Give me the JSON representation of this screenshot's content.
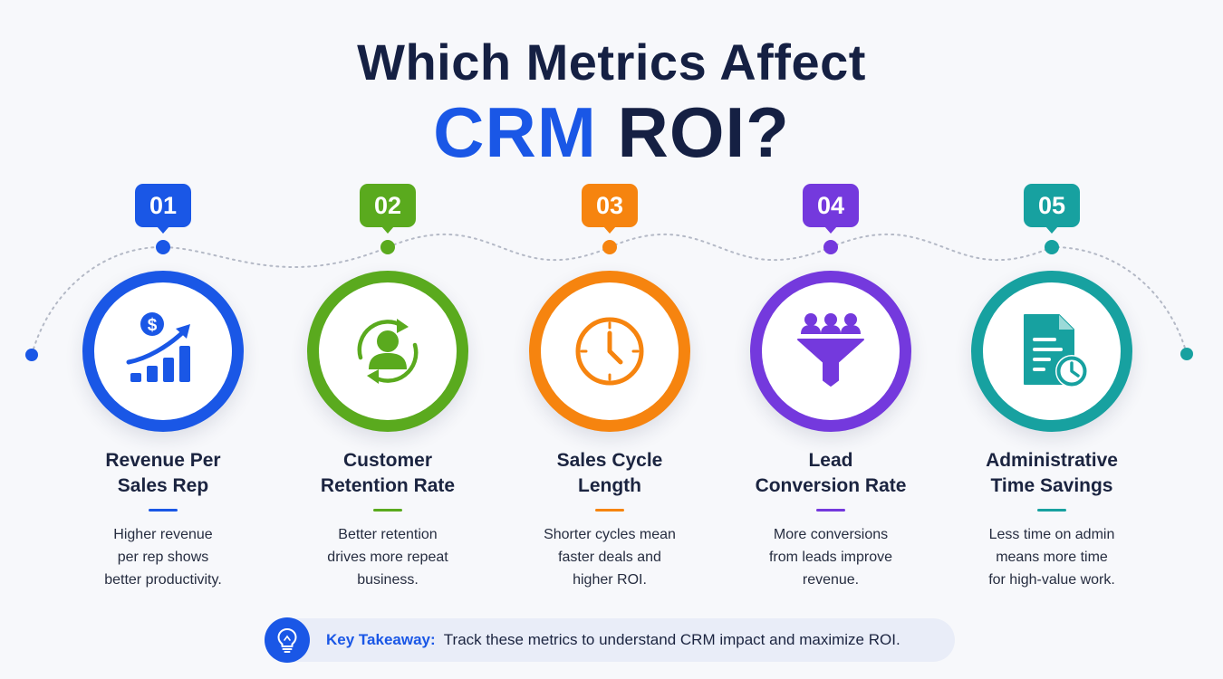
{
  "title": {
    "line1": "Which Metrics Affect",
    "line2_accent": "CRM",
    "line2_rest": "ROI?"
  },
  "metrics": [
    {
      "number": "01",
      "name_line1": "Revenue Per",
      "name_line2": "Sales Rep",
      "desc": [
        "Higher revenue",
        "per rep shows",
        "better productivity."
      ],
      "color": "#1a57e6",
      "icon": "revenue-chart-icon"
    },
    {
      "number": "02",
      "name_line1": "Customer",
      "name_line2": "Retention Rate",
      "desc": [
        "Better retention",
        "drives more repeat",
        "business."
      ],
      "color": "#5aaa1e",
      "icon": "customer-retention-icon"
    },
    {
      "number": "03",
      "name_line1": "Sales Cycle",
      "name_line2": "Length",
      "desc": [
        "Shorter cycles mean",
        "faster deals and",
        "higher ROI."
      ],
      "color": "#f6840f",
      "icon": "clock-icon"
    },
    {
      "number": "04",
      "name_line1": "Lead",
      "name_line2": "Conversion Rate",
      "desc": [
        "More conversions",
        "from leads improve",
        "revenue."
      ],
      "color": "#7439dd",
      "icon": "funnel-icon"
    },
    {
      "number": "05",
      "name_line1": "Administrative",
      "name_line2": "Time Savings",
      "desc": [
        "Less time on admin",
        "means more time",
        "for high-value work."
      ],
      "color": "#17a1a0",
      "icon": "document-clock-icon"
    }
  ],
  "takeaway": {
    "label": "Key Takeaway:",
    "text": "Track these metrics to understand CRM impact and maximize ROI.",
    "icon": "lightbulb-icon"
  }
}
